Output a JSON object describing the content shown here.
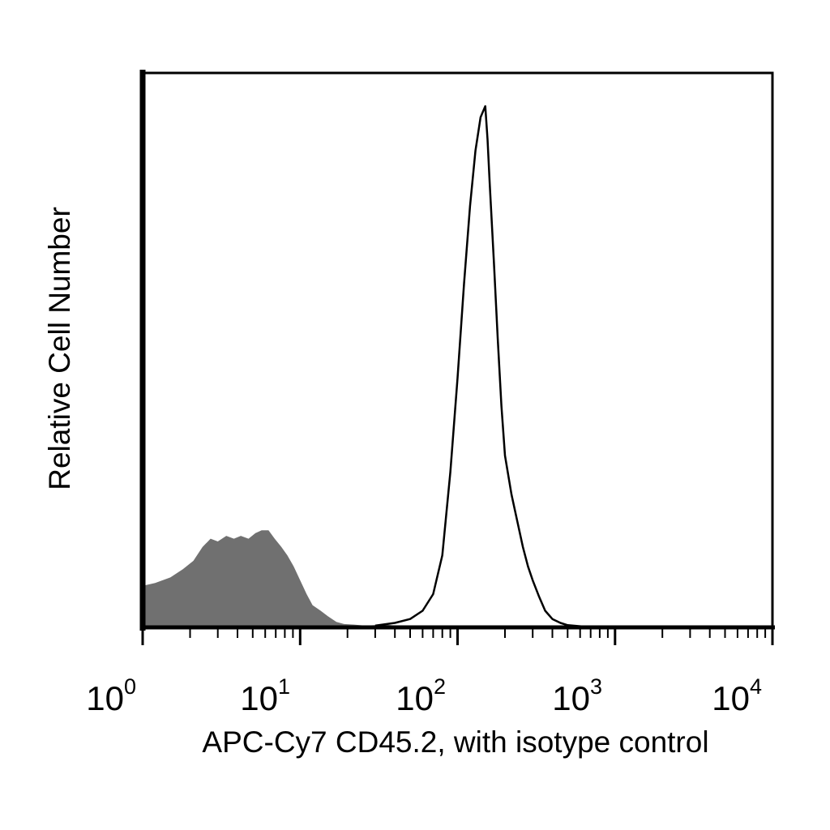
{
  "chart_data": {
    "type": "area",
    "title": "",
    "xlabel": "APC-Cy7 CD45.2, with isotype control",
    "ylabel": "Relative Cell Number",
    "xscale": "log",
    "xlim": [
      1,
      10000
    ],
    "ylim": [
      0,
      100
    ],
    "grid": false,
    "legend": "none",
    "x_ticks": [
      {
        "base": "10",
        "exp": "0"
      },
      {
        "base": "10",
        "exp": "1"
      },
      {
        "base": "10",
        "exp": "2"
      },
      {
        "base": "10",
        "exp": "3"
      },
      {
        "base": "10",
        "exp": "4"
      }
    ],
    "series": [
      {
        "style": "filled",
        "color": "#707070",
        "x": [
          1.0,
          1.2,
          1.5,
          1.8,
          2.1,
          2.4,
          2.7,
          3.0,
          3.4,
          3.8,
          4.2,
          4.7,
          5.2,
          5.7,
          6.3,
          6.9,
          7.6,
          8.3,
          9.1,
          10.0,
          11.0,
          12.0,
          13.5,
          15.0,
          17.0,
          19.0,
          22.0,
          26.0,
          30.0,
          35.0,
          40.0,
          50.0,
          60.0,
          80.0,
          100.0,
          150.0,
          200.0,
          300.0,
          400.0,
          500.0
        ],
        "y": [
          7.5,
          8.0,
          9.0,
          10.5,
          12.0,
          14.5,
          16.0,
          15.5,
          16.5,
          16.0,
          16.5,
          16.0,
          17.0,
          17.5,
          17.5,
          16.0,
          14.5,
          13.0,
          11.0,
          8.5,
          6.0,
          4.0,
          3.0,
          2.0,
          1.0,
          0.6,
          0.5,
          0.3,
          0.4,
          0.5,
          0.3,
          0.2,
          0.3,
          0.2,
          0.3,
          0.2,
          0.2,
          0.2,
          0.1,
          0.0
        ]
      },
      {
        "style": "outline",
        "color": "#000000",
        "x": [
          30.0,
          40.0,
          50.0,
          60.0,
          70.0,
          80.0,
          90.0,
          100.0,
          110.0,
          120.0,
          130.0,
          140.0,
          150.0,
          155.0,
          160.0,
          170.0,
          180.0,
          190.0,
          200.0,
          220.0,
          240.0,
          260.0,
          280.0,
          300.0,
          330.0,
          360.0,
          400.0,
          450.0,
          500.0,
          600.0,
          700.0
        ],
        "y": [
          0.3,
          0.8,
          1.5,
          3.0,
          6.0,
          13.0,
          28.0,
          45.0,
          62.0,
          76.0,
          86.0,
          92.0,
          94.0,
          88.0,
          80.0,
          66.0,
          52.0,
          40.0,
          31.0,
          24.0,
          19.0,
          14.5,
          11.0,
          8.5,
          5.5,
          3.0,
          1.5,
          0.8,
          0.4,
          0.2,
          0.0
        ]
      }
    ]
  }
}
